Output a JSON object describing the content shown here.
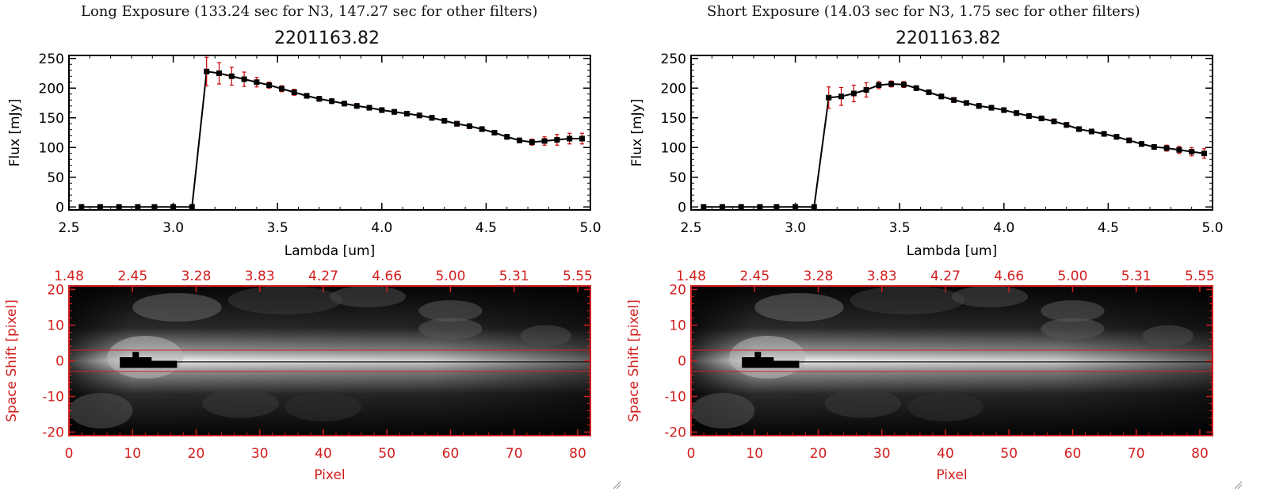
{
  "chart_data": [
    {
      "type": "line",
      "title": "Long Exposure (133.24 sec for N3, 147.27 sec for other filters)",
      "subtitle": "2201163.82",
      "xlabel": "Lambda [um]",
      "ylabel": "Flux [mJy]",
      "xlim": [
        2.5,
        5.0
      ],
      "ylim": [
        -5,
        255
      ],
      "xticks": [
        "2.5",
        "3.0",
        "3.5",
        "4.0",
        "4.5",
        "5.0"
      ],
      "yticks": [
        "0",
        "50",
        "100",
        "150",
        "200",
        "250"
      ],
      "series": [
        {
          "name": "flux",
          "x": [
            2.56,
            2.65,
            2.74,
            2.83,
            2.91,
            3.0,
            3.09,
            3.16,
            3.22,
            3.28,
            3.34,
            3.4,
            3.46,
            3.52,
            3.58,
            3.64,
            3.7,
            3.76,
            3.82,
            3.88,
            3.94,
            4.0,
            4.06,
            4.12,
            4.18,
            4.24,
            4.3,
            4.36,
            4.42,
            4.48,
            4.54,
            4.6,
            4.66,
            4.72,
            4.78,
            4.84,
            4.9,
            4.96
          ],
          "y": [
            0,
            0,
            0,
            0,
            0,
            0,
            0,
            228,
            225,
            220,
            215,
            210,
            205,
            199,
            193,
            187,
            182,
            178,
            174,
            170,
            167,
            163,
            160,
            157,
            154,
            150,
            145,
            140,
            136,
            131,
            125,
            118,
            112,
            109,
            111,
            113,
            115,
            115
          ],
          "err": [
            0,
            0,
            0,
            0,
            0,
            0,
            0,
            24,
            18,
            15,
            12,
            8,
            5,
            5,
            5,
            4,
            4,
            4,
            4,
            4,
            4,
            4,
            4,
            4,
            4,
            4,
            4,
            4,
            4,
            4,
            4,
            4,
            4,
            5,
            7,
            9,
            9,
            9
          ]
        }
      ]
    },
    {
      "type": "line",
      "title": "Short Exposure (14.03 sec for N3, 1.75 sec for other filters)",
      "subtitle": "2201163.82",
      "xlabel": "Lambda [um]",
      "ylabel": "Flux [mJy]",
      "xlim": [
        2.5,
        5.0
      ],
      "ylim": [
        -5,
        255
      ],
      "xticks": [
        "2.5",
        "3.0",
        "3.5",
        "4.0",
        "4.5",
        "5.0"
      ],
      "yticks": [
        "0",
        "50",
        "100",
        "150",
        "200",
        "250"
      ],
      "series": [
        {
          "name": "flux",
          "x": [
            2.56,
            2.65,
            2.74,
            2.83,
            2.91,
            3.0,
            3.09,
            3.16,
            3.22,
            3.28,
            3.34,
            3.4,
            3.46,
            3.52,
            3.58,
            3.64,
            3.7,
            3.76,
            3.82,
            3.88,
            3.94,
            4.0,
            4.06,
            4.12,
            4.18,
            4.24,
            4.3,
            4.36,
            4.42,
            4.48,
            4.54,
            4.6,
            4.66,
            4.72,
            4.78,
            4.84,
            4.9,
            4.96
          ],
          "y": [
            0,
            0,
            0,
            0,
            0,
            0,
            0,
            184,
            186,
            191,
            197,
            205,
            207,
            206,
            200,
            193,
            186,
            180,
            175,
            170,
            167,
            163,
            158,
            153,
            149,
            144,
            138,
            131,
            127,
            123,
            118,
            112,
            106,
            101,
            99,
            96,
            93,
            90
          ],
          "err": [
            0,
            0,
            0,
            0,
            0,
            0,
            0,
            18,
            15,
            14,
            12,
            6,
            5,
            5,
            4,
            4,
            4,
            4,
            4,
            4,
            4,
            4,
            4,
            4,
            4,
            4,
            4,
            4,
            4,
            4,
            4,
            4,
            4,
            4,
            5,
            6,
            7,
            8
          ]
        }
      ]
    },
    {
      "type": "heatmap",
      "title": "",
      "xlabel": "Pixel",
      "ylabel": "Space Shift [pixel]",
      "xlim": [
        0,
        82
      ],
      "ylim": [
        -21,
        21
      ],
      "xticks": [
        "0",
        "10",
        "20",
        "30",
        "40",
        "50",
        "60",
        "70",
        "80"
      ],
      "yticks": [
        "-20",
        "-10",
        "0",
        "10",
        "20"
      ],
      "top_ticks": [
        "1.48",
        "2.45",
        "3.28",
        "3.83",
        "4.27",
        "4.66",
        "5.00",
        "5.31",
        "5.55"
      ],
      "extraction_band": [
        -3,
        3
      ]
    },
    {
      "type": "heatmap",
      "title": "",
      "xlabel": "Pixel",
      "ylabel": "Space Shift [pixel]",
      "xlim": [
        0,
        82
      ],
      "ylim": [
        -21,
        21
      ],
      "xticks": [
        "0",
        "10",
        "20",
        "30",
        "40",
        "50",
        "60",
        "70",
        "80"
      ],
      "yticks": [
        "-20",
        "-10",
        "0",
        "10",
        "20"
      ],
      "top_ticks": [
        "1.48",
        "2.45",
        "3.28",
        "3.83",
        "4.27",
        "4.66",
        "5.00",
        "5.31",
        "5.55"
      ],
      "extraction_band": [
        -3,
        3
      ]
    }
  ],
  "colors": {
    "line": "#000000",
    "error": "#cc0000",
    "axis_red": "#d21e1e"
  }
}
